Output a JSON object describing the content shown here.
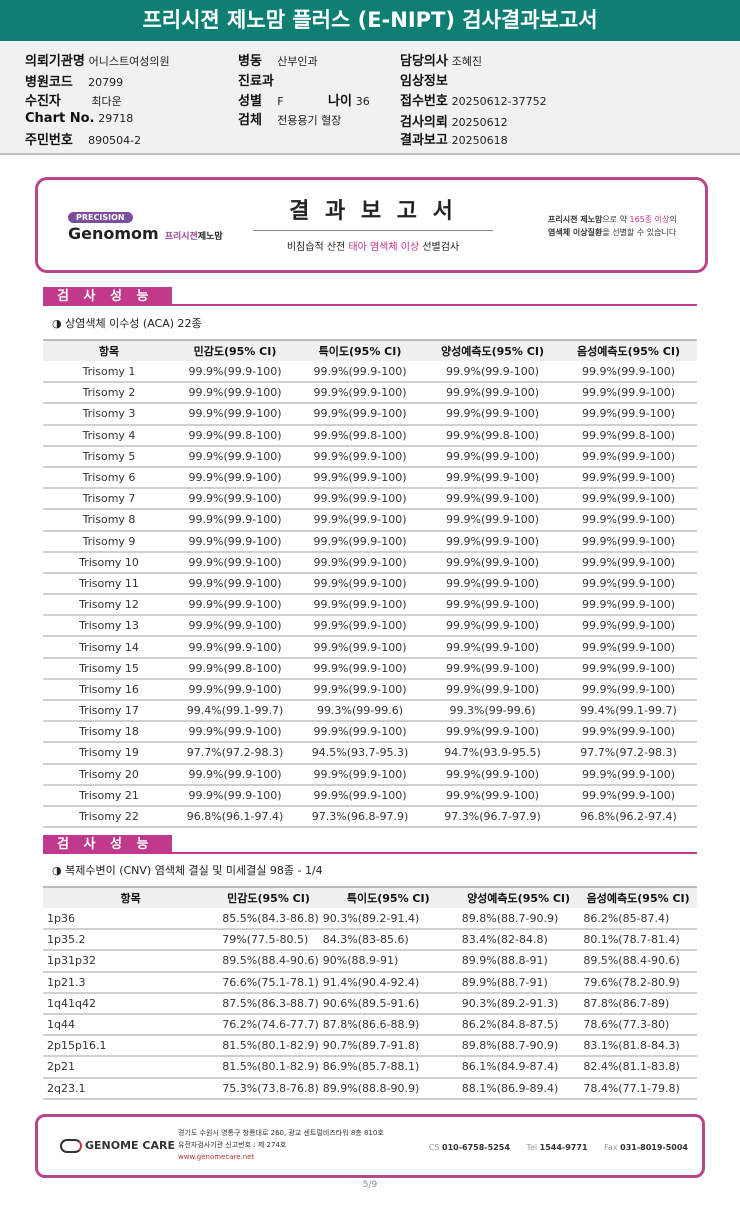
{
  "title": "프리시젼 제노맘 플러스 (E-NIPT) 검사결과보고서",
  "info": {
    "institution": {
      "label": "의뢰기관명",
      "value": "어니스트여성의원"
    },
    "hospital_code": {
      "label": "병원코드",
      "value": "20799"
    },
    "patient": {
      "label": "수진자",
      "value": "최다운"
    },
    "chart_no": {
      "label": "Chart No.",
      "value": "29718"
    },
    "resident_no": {
      "label": "주민번호",
      "value": "890504-2"
    },
    "ward": {
      "label": "병동",
      "value": "산부인과"
    },
    "department": {
      "label": "진료과",
      "value": ""
    },
    "sex": {
      "label": "성별",
      "value": "F"
    },
    "age": {
      "label": "나이",
      "value": "36"
    },
    "specimen": {
      "label": "검체",
      "value": "전용용기 혈장"
    },
    "doctor": {
      "label": "담당의사",
      "value": "조혜진"
    },
    "clinical": {
      "label": "임상정보",
      "value": ""
    },
    "receipt_no": {
      "label": "접수번호",
      "value": "20250612-37752"
    },
    "request_date": {
      "label": "검사의뢰",
      "value": "20250612"
    },
    "report_date": {
      "label": "결과보고",
      "value": "20250618"
    }
  },
  "banner": {
    "precision": "PRECISION",
    "brand": "Genomom",
    "brand_kr1": "프리시젼",
    "brand_kr2": "제노맘",
    "title": "결 과 보 고 서",
    "sub1": "비침습적 산전 ",
    "sub_pink": "태아 염색체 이상",
    "sub2": " 선별검사",
    "right1a": "프리시젼 제노맘",
    "right1b": "으로 약 ",
    "right1c": "165종 이상",
    "right1d": "의",
    "right2a": "염색체 이상질환",
    "right2b": "을 선별할 수 있습니다"
  },
  "colors": {
    "header": "#0f7f73",
    "accent": "#c0398a"
  },
  "section_label": "검 사 성 능",
  "aca": {
    "subtitle": "◑ 상염색체 이수성 (ACA) 22종",
    "headers": [
      "항목",
      "민감도(95% CI)",
      "특이도(95% CI)",
      "양성예측도(95% CI)",
      "음성예측도(95% CI)"
    ],
    "rows": [
      [
        "Trisomy 1",
        "99.9%(99.9-100)",
        "99.9%(99.9-100)",
        "99.9%(99.9-100)",
        "99.9%(99.9-100)"
      ],
      [
        "Trisomy 2",
        "99.9%(99.9-100)",
        "99.9%(99.9-100)",
        "99.9%(99.9-100)",
        "99.9%(99.9-100)"
      ],
      [
        "Trisomy 3",
        "99.9%(99.9-100)",
        "99.9%(99.9-100)",
        "99.9%(99.9-100)",
        "99.9%(99.9-100)"
      ],
      [
        "Trisomy 4",
        "99.9%(99.8-100)",
        "99.9%(99.8-100)",
        "99.9%(99.8-100)",
        "99.9%(99.8-100)"
      ],
      [
        "Trisomy 5",
        "99.9%(99.9-100)",
        "99.9%(99.9-100)",
        "99.9%(99.9-100)",
        "99.9%(99.9-100)"
      ],
      [
        "Trisomy 6",
        "99.9%(99.9-100)",
        "99.9%(99.9-100)",
        "99.9%(99.9-100)",
        "99.9%(99.9-100)"
      ],
      [
        "Trisomy 7",
        "99.9%(99.9-100)",
        "99.9%(99.9-100)",
        "99.9%(99.9-100)",
        "99.9%(99.9-100)"
      ],
      [
        "Trisomy 8",
        "99.9%(99.9-100)",
        "99.9%(99.9-100)",
        "99.9%(99.9-100)",
        "99.9%(99.9-100)"
      ],
      [
        "Trisomy 9",
        "99.9%(99.9-100)",
        "99.9%(99.9-100)",
        "99.9%(99.9-100)",
        "99.9%(99.9-100)"
      ],
      [
        "Trisomy 10",
        "99.9%(99.9-100)",
        "99.9%(99.9-100)",
        "99.9%(99.9-100)",
        "99.9%(99.9-100)"
      ],
      [
        "Trisomy 11",
        "99.9%(99.9-100)",
        "99.9%(99.9-100)",
        "99.9%(99.9-100)",
        "99.9%(99.9-100)"
      ],
      [
        "Trisomy 12",
        "99.9%(99.9-100)",
        "99.9%(99.9-100)",
        "99.9%(99.9-100)",
        "99.9%(99.9-100)"
      ],
      [
        "Trisomy 13",
        "99.9%(99.9-100)",
        "99.9%(99.9-100)",
        "99.9%(99.9-100)",
        "99.9%(99.9-100)"
      ],
      [
        "Trisomy 14",
        "99.9%(99.9-100)",
        "99.9%(99.9-100)",
        "99.9%(99.9-100)",
        "99.9%(99.9-100)"
      ],
      [
        "Trisomy 15",
        "99.9%(99.8-100)",
        "99.9%(99.9-100)",
        "99.9%(99.9-100)",
        "99.9%(99.9-100)"
      ],
      [
        "Trisomy 16",
        "99.9%(99.9-100)",
        "99.9%(99.9-100)",
        "99.9%(99.9-100)",
        "99.9%(99.9-100)"
      ],
      [
        "Trisomy 17",
        "99.4%(99.1-99.7)",
        "99.3%(99-99.6)",
        "99.3%(99-99.6)",
        "99.4%(99.1-99.7)"
      ],
      [
        "Trisomy 18",
        "99.9%(99.9-100)",
        "99.9%(99.9-100)",
        "99.9%(99.9-100)",
        "99.9%(99.9-100)"
      ],
      [
        "Trisomy 19",
        "97.7%(97.2-98.3)",
        "94.5%(93.7-95.3)",
        "94.7%(93.9-95.5)",
        "97.7%(97.2-98.3)"
      ],
      [
        "Trisomy 20",
        "99.9%(99.9-100)",
        "99.9%(99.9-100)",
        "99.9%(99.9-100)",
        "99.9%(99.9-100)"
      ],
      [
        "Trisomy 21",
        "99.9%(99.9-100)",
        "99.9%(99.9-100)",
        "99.9%(99.9-100)",
        "99.9%(99.9-100)"
      ],
      [
        "Trisomy 22",
        "96.8%(96.1-97.4)",
        "97.3%(96.8-97.9)",
        "97.3%(96.7-97.9)",
        "96.8%(96.2-97.4)"
      ]
    ]
  },
  "cnv": {
    "subtitle": "◑ 복제수변이 (CNV) 염색체 결실 및 미세결실 98종 - 1/4",
    "headers": [
      "항목",
      "민감도(95% CI)",
      "특이도(95% CI)",
      "양성예측도(95% CI)",
      "음성예측도(95% CI)"
    ],
    "rows": [
      [
        "1p36",
        "85.5%(84.3-86.8)",
        "90.3%(89.2-91.4)",
        "89.8%(88.7-90.9)",
        "86.2%(85-87.4)"
      ],
      [
        "1p35.2",
        "79%(77.5-80.5)",
        "84.3%(83-85.6)",
        "83.4%(82-84.8)",
        "80.1%(78.7-81.4)"
      ],
      [
        "1p31p32",
        "89.5%(88.4-90.6)",
        "90%(88.9-91)",
        "89.9%(88.8-91)",
        "89.5%(88.4-90.6)"
      ],
      [
        "1p21.3",
        "76.6%(75.1-78.1)",
        "91.4%(90.4-92.4)",
        "89.9%(88.7-91)",
        "79.6%(78.2-80.9)"
      ],
      [
        "1q41q42",
        "87.5%(86.3-88.7)",
        "90.6%(89.5-91.6)",
        "90.3%(89.2-91.3)",
        "87.8%(86.7-89)"
      ],
      [
        "1q44",
        "76.2%(74.6-77.7)",
        "87.8%(86.6-88.9)",
        "86.2%(84.8-87.5)",
        "78.6%(77.3-80)"
      ],
      [
        "2p15p16.1",
        "81.5%(80.1-82.9)",
        "90.7%(89.7-91.8)",
        "89.8%(88.7-90.9)",
        "83.1%(81.8-84.3)"
      ],
      [
        "2p21",
        "81.5%(80.1-82.9)",
        "86.9%(85.7-88.1)",
        "86.1%(84.9-87.4)",
        "82.4%(81.1-83.8)"
      ],
      [
        "2q23.1",
        "75.3%(73.8-76.8)",
        "89.9%(88.8-90.9)",
        "88.1%(86.9-89.4)",
        "78.4%(77.1-79.8)"
      ]
    ]
  },
  "footer": {
    "logo": "GENOME CARE",
    "address": "경기도 수원시 영통구 창룡대로 260, 광교 센트럴비즈타워 8층 810호",
    "license": "유전자검사기관 신고번호 : 제 274호",
    "url": "www.genomecare.net",
    "cs_label": "CS",
    "cs": "010-6758-5254",
    "tel_label": "Tel",
    "tel": "1544-9771",
    "fax_label": "Fax",
    "fax": "031-8019-5004"
  },
  "page_number": "5/9"
}
